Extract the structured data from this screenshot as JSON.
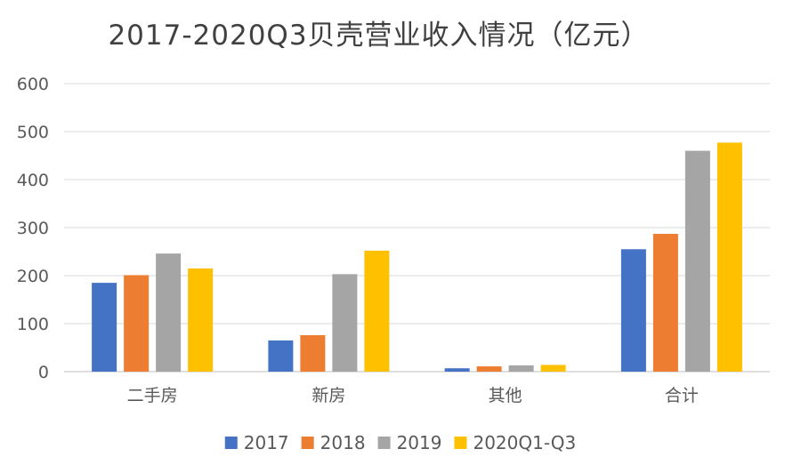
{
  "chart_data": {
    "type": "bar",
    "title": "2017-2020Q3贝壳营业收入情况（亿元）",
    "xlabel": "",
    "ylabel": "",
    "categories": [
      "二手房",
      "新房",
      "其他",
      "合计"
    ],
    "series": [
      {
        "name": "2017",
        "color": "#4472C4",
        "values": [
          185,
          65,
          7,
          255
        ]
      },
      {
        "name": "2018",
        "color": "#ED7D31",
        "values": [
          201,
          76,
          11,
          287
        ]
      },
      {
        "name": "2019",
        "color": "#A5A5A5",
        "values": [
          246,
          203,
          13,
          460
        ]
      },
      {
        "name": "2020Q1-Q3",
        "color": "#FFC000",
        "values": [
          215,
          252,
          14,
          477
        ]
      }
    ],
    "ylim": [
      0,
      600
    ],
    "yticks": [
      0,
      100,
      200,
      300,
      400,
      500,
      600
    ],
    "grid": true,
    "legend_position": "bottom"
  }
}
